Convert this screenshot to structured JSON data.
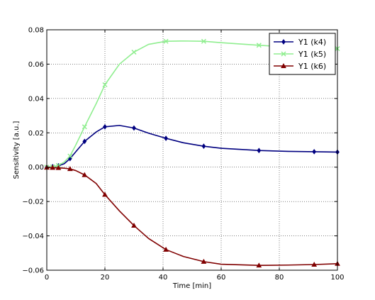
{
  "chart_data": {
    "type": "line",
    "xlabel": "Time [min]",
    "ylabel": "Sensitivity [a.u.]",
    "xlim": [
      0,
      100
    ],
    "ylim": [
      -0.06,
      0.08
    ],
    "x_ticks": [
      0,
      20,
      40,
      60,
      80,
      100
    ],
    "x_tick_labels": [
      "0",
      "20",
      "40",
      "60",
      "80",
      "100"
    ],
    "y_ticks": [
      -0.06,
      -0.04,
      -0.02,
      0.0,
      0.02,
      0.04,
      0.06,
      0.08
    ],
    "y_tick_labels": [
      "−0.06",
      "−0.04",
      "−0.02",
      "0.00",
      "0.02",
      "0.04",
      "0.06",
      "0.08"
    ],
    "grid": true,
    "legend_position": "top-right",
    "series": [
      {
        "name": "Y1 (k4)",
        "color": "#000080",
        "marker": "diamond",
        "line_x": [
          0,
          2,
          4,
          6,
          8,
          10,
          13,
          17,
          20,
          25,
          30,
          35,
          41,
          47,
          54,
          60,
          73,
          83,
          92,
          100
        ],
        "line_y": [
          0.0,
          0.0003,
          0.0008,
          0.002,
          0.005,
          0.009,
          0.015,
          0.0205,
          0.0235,
          0.0243,
          0.0228,
          0.0198,
          0.0168,
          0.0142,
          0.0122,
          0.011,
          0.0097,
          0.0092,
          0.009,
          0.0088
        ],
        "marker_x": [
          0,
          2,
          4,
          8,
          13,
          20,
          30,
          41,
          54,
          73,
          92,
          100
        ],
        "marker_y": [
          0.0,
          0.0003,
          0.0008,
          0.005,
          0.015,
          0.0235,
          0.0228,
          0.0168,
          0.0122,
          0.0097,
          0.009,
          0.0088
        ]
      },
      {
        "name": "Y1 (k5)",
        "color": "#90ee90",
        "marker": "x",
        "line_x": [
          0,
          2,
          4,
          6,
          8,
          10,
          13,
          17,
          20,
          25,
          30,
          35,
          41,
          47,
          54,
          60,
          73,
          83,
          92,
          100
        ],
        "line_y": [
          0.0,
          0.0002,
          0.001,
          0.003,
          0.0065,
          0.013,
          0.0235,
          0.037,
          0.048,
          0.06,
          0.067,
          0.0715,
          0.0733,
          0.0735,
          0.0733,
          0.0725,
          0.071,
          0.07,
          0.0695,
          0.069
        ],
        "marker_x": [
          0,
          2,
          4,
          8,
          13,
          20,
          30,
          41,
          54,
          73,
          92,
          100
        ],
        "marker_y": [
          0.0,
          0.0002,
          0.001,
          0.0065,
          0.0235,
          0.048,
          0.067,
          0.0733,
          0.0733,
          0.071,
          0.0695,
          0.069
        ]
      },
      {
        "name": "Y1 (k6)",
        "color": "#800000",
        "marker": "triangle",
        "line_x": [
          0,
          2,
          4,
          6,
          8,
          10,
          13,
          17,
          20,
          25,
          30,
          35,
          41,
          47,
          54,
          60,
          73,
          83,
          92,
          100
        ],
        "line_y": [
          -0.0002,
          -0.0003,
          -0.0004,
          -0.0006,
          -0.001,
          -0.002,
          -0.0045,
          -0.0095,
          -0.016,
          -0.0255,
          -0.034,
          -0.0415,
          -0.048,
          -0.052,
          -0.055,
          -0.0565,
          -0.0572,
          -0.057,
          -0.0567,
          -0.0562
        ],
        "marker_x": [
          0,
          2,
          4,
          8,
          13,
          20,
          30,
          41,
          54,
          73,
          92,
          100
        ],
        "marker_y": [
          -0.0002,
          -0.0003,
          -0.0004,
          -0.001,
          -0.0045,
          -0.016,
          -0.034,
          -0.048,
          -0.055,
          -0.0572,
          -0.0567,
          -0.0562
        ]
      }
    ]
  }
}
